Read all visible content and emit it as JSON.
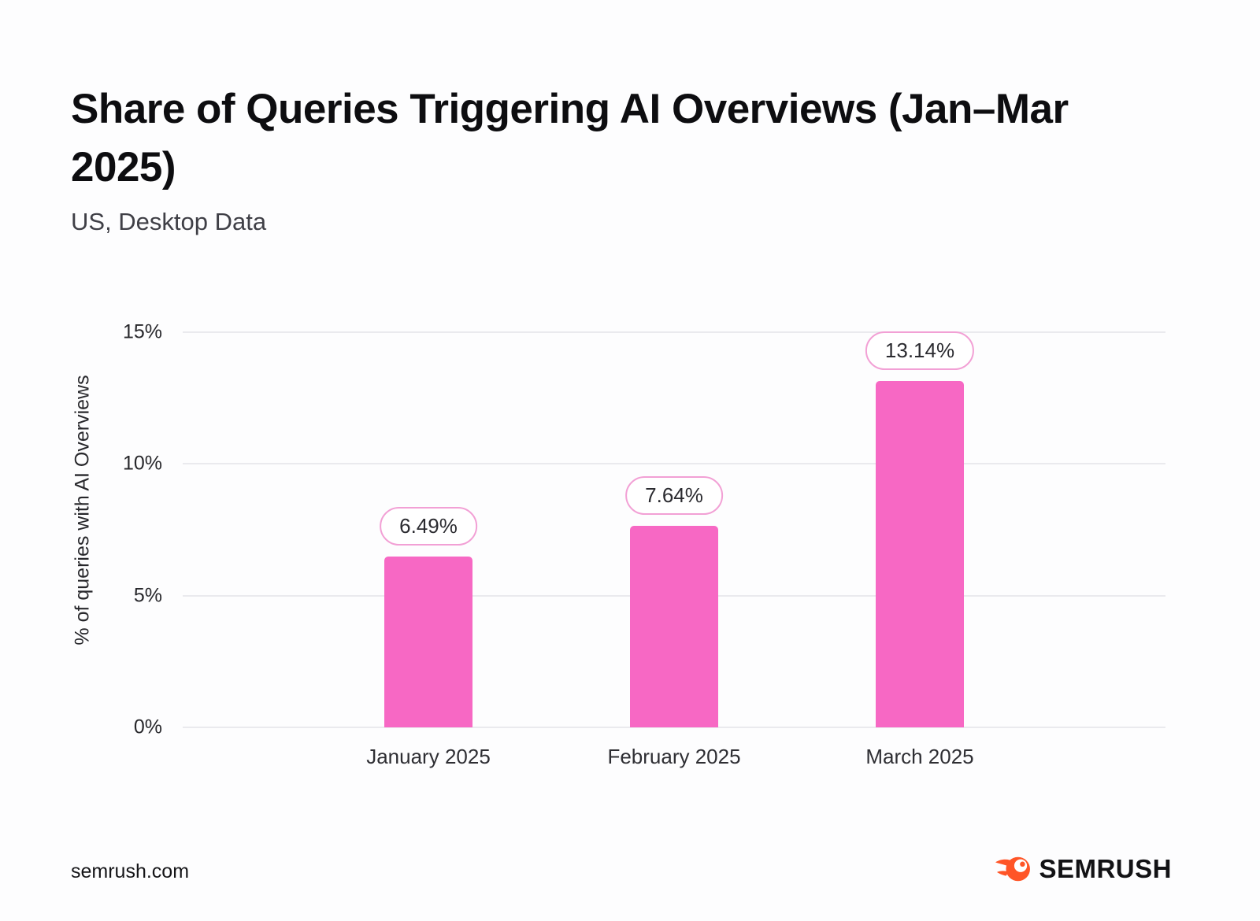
{
  "header": {
    "title": "Share of Queries Triggering AI Overviews (Jan–Mar 2025)",
    "subtitle": "US, Desktop Data"
  },
  "chart_data": {
    "type": "bar",
    "categories": [
      "January 2025",
      "February 2025",
      "March 2025"
    ],
    "values": [
      6.49,
      7.64,
      13.14
    ],
    "value_labels": [
      "6.49%",
      "7.64%",
      "13.14%"
    ],
    "title": "Share of Queries Triggering AI Overviews (Jan–Mar 2025)",
    "subtitle": "US, Desktop Data",
    "xlabel": "",
    "ylabel": "% of queries with AI Overviews",
    "ylim": [
      0,
      15
    ],
    "yticks": [
      0,
      5,
      10,
      15
    ],
    "ytick_labels": [
      "0%",
      "5%",
      "10%",
      "15%"
    ],
    "grid": true,
    "legend": false,
    "bar_color": "#f768c4",
    "pill_border_color": "#f2a0d5",
    "gridline_color": "#eaeaee"
  },
  "footer": {
    "source": "semrush.com",
    "brand": "SEMRUSH",
    "brand_color": "#ff5527"
  }
}
